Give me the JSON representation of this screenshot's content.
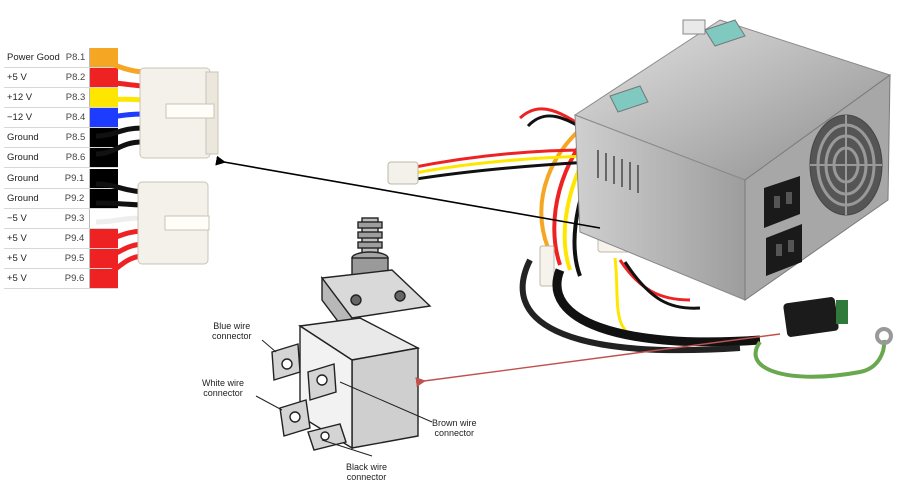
{
  "connector_p8": [
    {
      "signal": "Power Good",
      "pin": "P8.1",
      "color": "#f5a623"
    },
    {
      "signal": "+5 V",
      "pin": "P8.2",
      "color": "#ee2222"
    },
    {
      "signal": "+12 V",
      "pin": "P8.3",
      "color": "#ffe600"
    },
    {
      "signal": "−12 V",
      "pin": "P8.4",
      "color": "#1e3cff"
    },
    {
      "signal": "Ground",
      "pin": "P8.5",
      "color": "#000000"
    },
    {
      "signal": "Ground",
      "pin": "P8.6",
      "color": "#000000"
    }
  ],
  "connector_p9": [
    {
      "signal": "Ground",
      "pin": "P9.1",
      "color": "#000000"
    },
    {
      "signal": "Ground",
      "pin": "P9.2",
      "color": "#000000"
    },
    {
      "signal": "−5 V",
      "pin": "P9.3",
      "color": "#ffffff"
    },
    {
      "signal": "+5 V",
      "pin": "P9.4",
      "color": "#ee2222"
    },
    {
      "signal": "+5 V",
      "pin": "P9.5",
      "color": "#ee2222"
    },
    {
      "signal": "+5 V",
      "pin": "P9.6",
      "color": "#ee2222"
    }
  ],
  "switch_labels": {
    "blue": "Blue wire\nconnector",
    "white": "White wire\nconnector",
    "brown": "Brown wire\nconnector",
    "black": "Black wire\nconnector"
  },
  "arrow_colors": {
    "connector": "#000000",
    "switch": "#c0504d"
  }
}
